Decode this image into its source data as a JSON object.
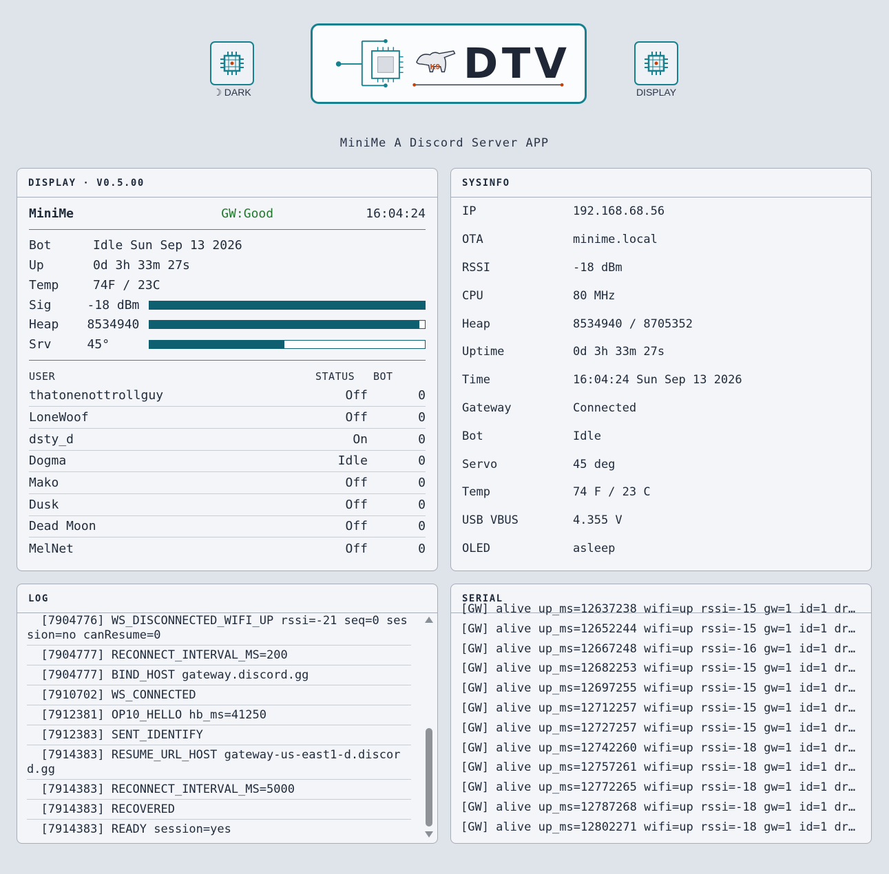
{
  "header": {
    "left_button_label": "☽ DARK",
    "right_button_label": "DISPLAY",
    "logo": {
      "badge": "K9",
      "wordmark": "DTV"
    },
    "subtitle": "MiniMe A Discord Server APP"
  },
  "display": {
    "title": "DISPLAY · V0.5.00",
    "name": "MiniMe",
    "gw_status": "GW:Good",
    "clock": "16:04:24",
    "stats": [
      {
        "key": "Bot",
        "value": "Idle Sun Sep 13 2026"
      },
      {
        "key": "Up",
        "value": "0d 3h 33m 27s"
      },
      {
        "key": "Temp",
        "value": "74F / 23C"
      }
    ],
    "bars": [
      {
        "key": "Sig",
        "value": "-18 dBm",
        "level": 1.0
      },
      {
        "key": "Heap",
        "value": "8534940",
        "level": 0.98
      },
      {
        "key": "Srv",
        "value": "45°",
        "level": 0.49
      }
    ],
    "user_headers": {
      "user": "USER",
      "status": "STATUS",
      "bot": "BOT"
    },
    "users": [
      {
        "name": "thatonenottrollguy",
        "status": "Off",
        "bot": "0"
      },
      {
        "name": "LoneWoof",
        "status": "Off",
        "bot": "0"
      },
      {
        "name": "dsty_d",
        "status": "On",
        "bot": "0"
      },
      {
        "name": "Dogma",
        "status": "Idle",
        "bot": "0"
      },
      {
        "name": "Mako",
        "status": "Off",
        "bot": "0"
      },
      {
        "name": "Dusk",
        "status": "Off",
        "bot": "0"
      },
      {
        "name": "Dead Moon",
        "status": "Off",
        "bot": "0"
      },
      {
        "name": "MelNet",
        "status": "Off",
        "bot": "0"
      }
    ]
  },
  "sysinfo": {
    "title": "SYSINFO",
    "rows": [
      {
        "key": "IP",
        "value": "192.168.68.56"
      },
      {
        "key": "OTA",
        "value": "minime.local"
      },
      {
        "key": "RSSI",
        "value": "-18 dBm"
      },
      {
        "key": "CPU",
        "value": "80 MHz"
      },
      {
        "key": "Heap",
        "value": "8534940 / 8705352"
      },
      {
        "key": "Uptime",
        "value": "0d 3h 33m 27s"
      },
      {
        "key": "Time",
        "value": "16:04:24 Sun Sep 13 2026"
      },
      {
        "key": "Gateway",
        "value": "Connected"
      },
      {
        "key": "Bot",
        "value": "Idle"
      },
      {
        "key": "Servo",
        "value": "45 deg"
      },
      {
        "key": "Temp",
        "value": "74 F / 23 C"
      },
      {
        "key": "USB VBUS",
        "value": "4.355 V"
      },
      {
        "key": "OLED",
        "value": "asleep"
      }
    ]
  },
  "log": {
    "title": "LOG",
    "lines": [
      "  [7904776] WS_DISCONNECTED_WIFI_UP rssi=-21 seq=0 session=no canResume=0",
      "  [7904777] RECONNECT_INTERVAL_MS=200",
      "  [7904777] BIND_HOST gateway.discord.gg",
      "  [7910702] WS_CONNECTED",
      "  [7912381] OP10_HELLO hb_ms=41250",
      "  [7912383] SENT_IDENTIFY",
      "  [7914383] RESUME_URL_HOST gateway-us-east1-d.discord.gg",
      "  [7914383] RECONNECT_INTERVAL_MS=5000",
      "  [7914383] RECOVERED",
      "  [7914383] READY session=yes"
    ]
  },
  "serial": {
    "title": "SERIAL",
    "partial_line": "[GW] alive up_ms=12637238 wifi=up rssi=-15 gw=1 id=1 dr…",
    "lines": [
      "[GW] alive up_ms=12652244 wifi=up rssi=-15 gw=1 id=1 dr…",
      "[GW] alive up_ms=12667248 wifi=up rssi=-16 gw=1 id=1 dr…",
      "[GW] alive up_ms=12682253 wifi=up rssi=-15 gw=1 id=1 dr…",
      "[GW] alive up_ms=12697255 wifi=up rssi=-15 gw=1 id=1 dr…",
      "[GW] alive up_ms=12712257 wifi=up rssi=-15 gw=1 id=1 dr…",
      "[GW] alive up_ms=12727257 wifi=up rssi=-15 gw=1 id=1 dr…",
      "[GW] alive up_ms=12742260 wifi=up rssi=-18 gw=1 id=1 dr…",
      "[GW] alive up_ms=12757261 wifi=up rssi=-18 gw=1 id=1 dr…",
      "[GW] alive up_ms=12772265 wifi=up rssi=-18 gw=1 id=1 dr…",
      "[GW] alive up_ms=12787268 wifi=up rssi=-18 gw=1 id=1 dr…",
      "[GW] alive up_ms=12802271 wifi=up rssi=-18 gw=1 id=1 dr…"
    ]
  },
  "colors": {
    "accent": "#17818f",
    "bar_fill": "#0e5f70",
    "gw_good": "#1f7a2b",
    "background": "#dfe3ea",
    "panel": "#f3f5f8"
  },
  "icons": [
    "chip-icon",
    "moon-icon",
    "dog-icon"
  ]
}
